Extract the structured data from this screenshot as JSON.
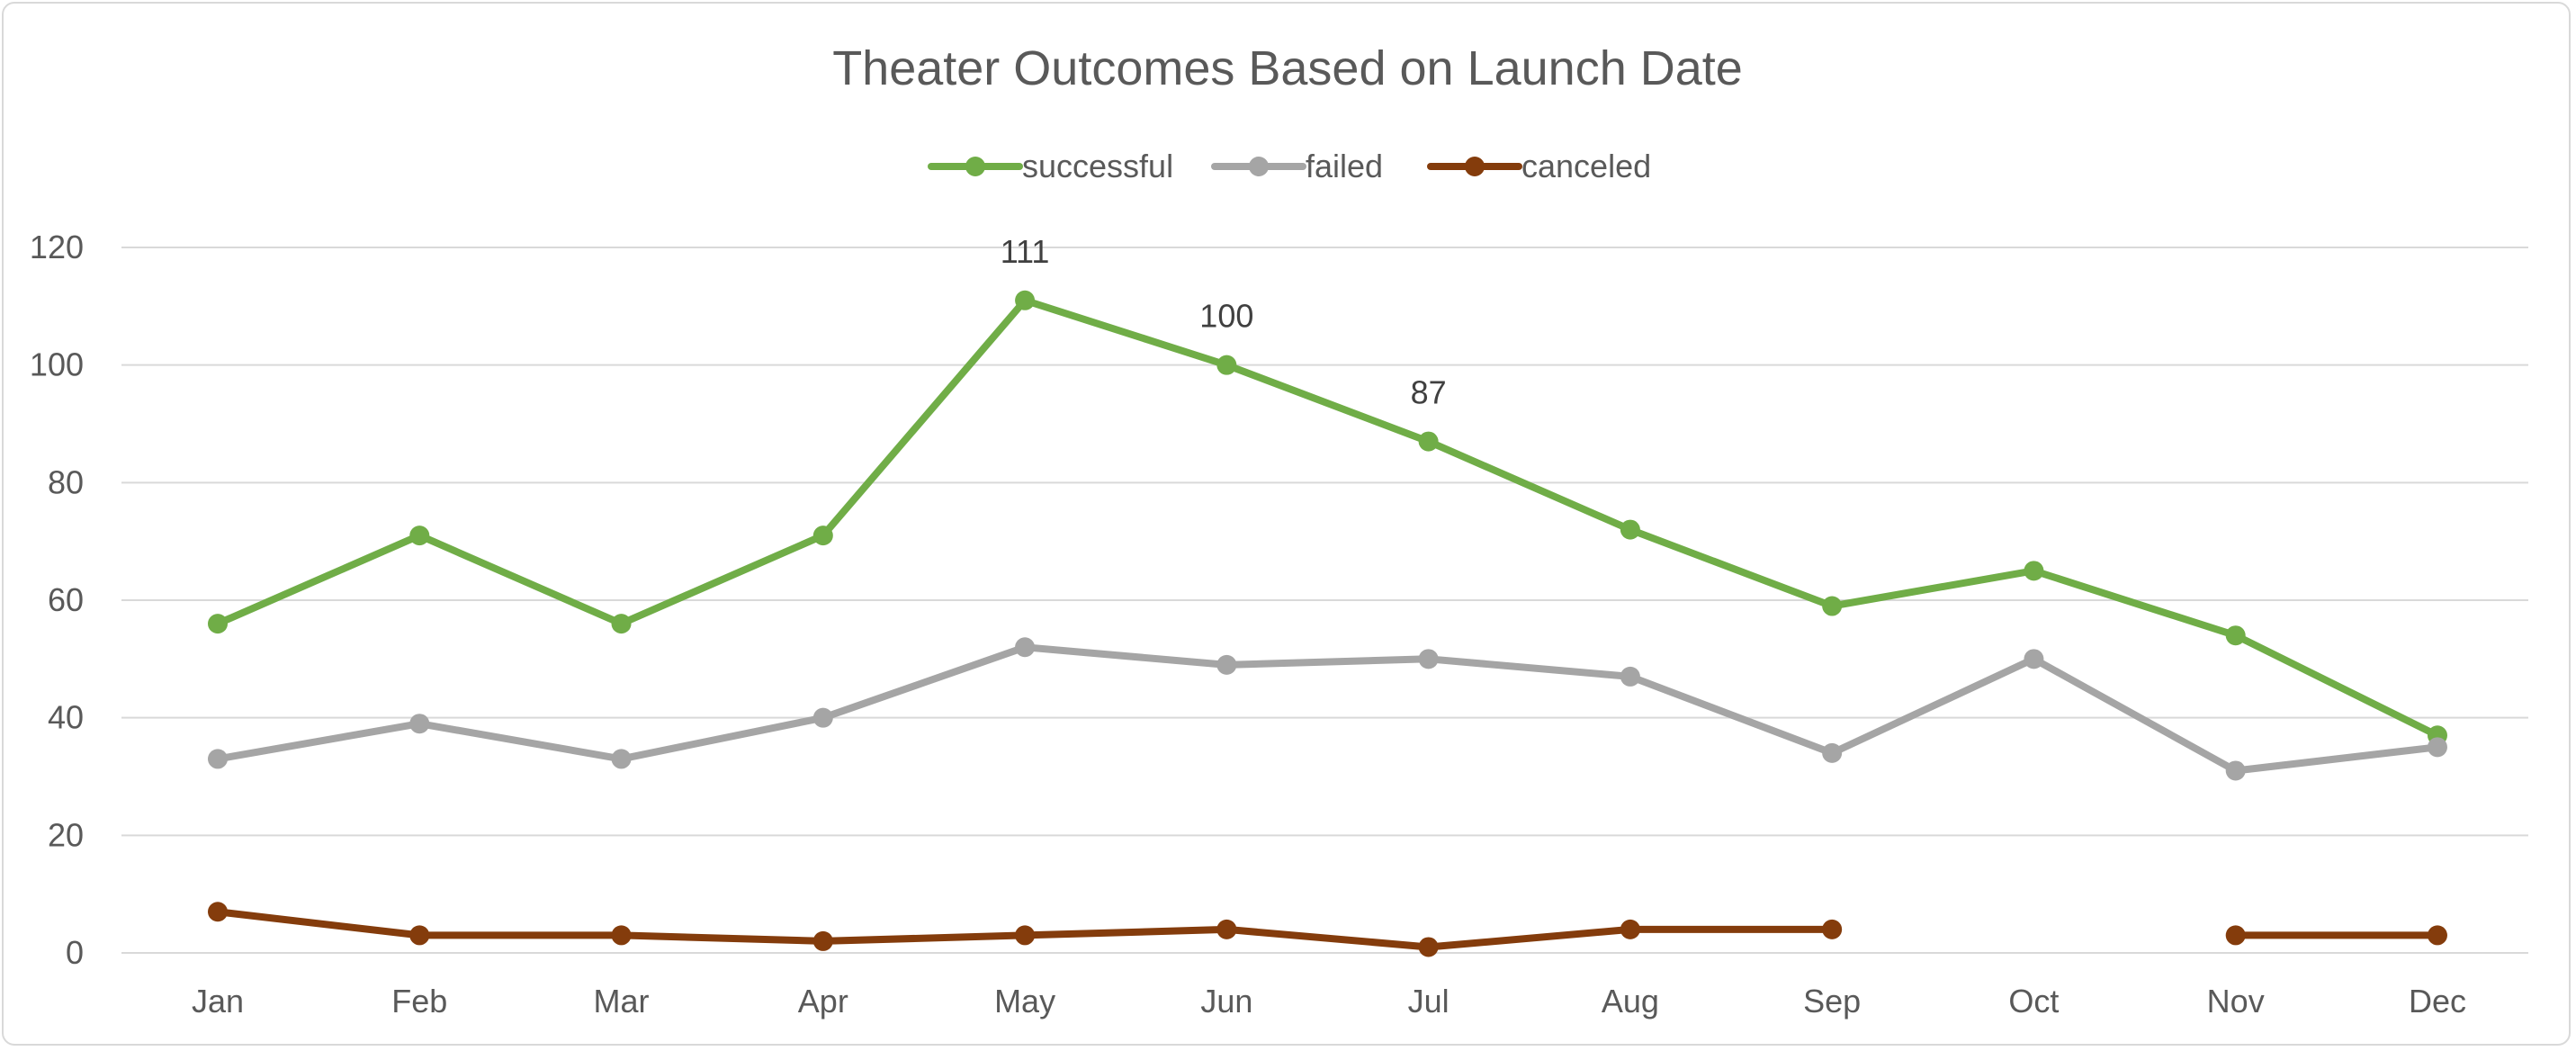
{
  "chart_data": {
    "type": "line",
    "title": "Theater Outcomes Based on Launch Date",
    "xlabel": "",
    "ylabel": "",
    "categories": [
      "Jan",
      "Feb",
      "Mar",
      "Apr",
      "May",
      "Jun",
      "Jul",
      "Aug",
      "Sep",
      "Oct",
      "Nov",
      "Dec"
    ],
    "ylim": [
      0,
      120
    ],
    "yticks": [
      "0",
      "20",
      "40",
      "60",
      "80",
      "100",
      "120"
    ],
    "grid": true,
    "legend_position": "top",
    "series": [
      {
        "name": "successful",
        "color": "#70ad47",
        "values": [
          56,
          71,
          56,
          71,
          111,
          100,
          87,
          72,
          59,
          65,
          54,
          37
        ],
        "data_labels": {
          "4": "111",
          "5": "100",
          "6": "87"
        }
      },
      {
        "name": "failed",
        "color": "#a5a5a5",
        "values": [
          33,
          39,
          33,
          40,
          52,
          49,
          50,
          47,
          34,
          50,
          31,
          35
        ]
      },
      {
        "name": "canceled",
        "color": "#843c0c",
        "values": [
          7,
          3,
          3,
          2,
          3,
          4,
          1,
          4,
          4,
          null,
          3,
          3
        ]
      }
    ]
  }
}
